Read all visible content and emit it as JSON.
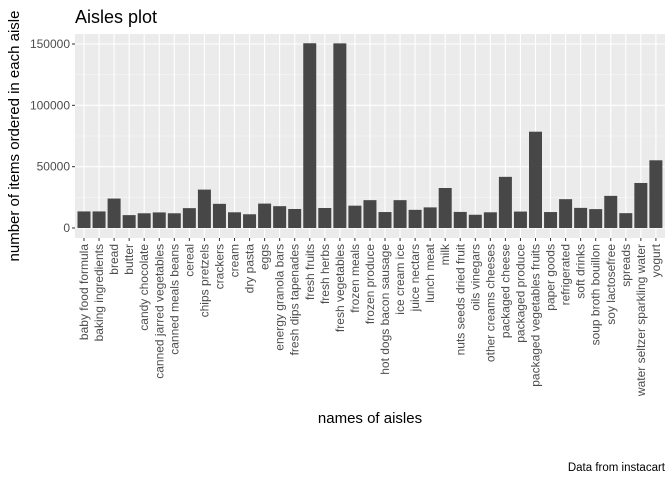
{
  "chart_data": {
    "type": "bar",
    "title": "Aisles plot",
    "xlabel": "names of aisles",
    "ylabel": "number of items ordered in each aisle",
    "caption": "Data from instacart",
    "ylim": [
      0,
      160000
    ],
    "yticks": [
      0,
      50000,
      100000,
      150000
    ],
    "ytick_labels": [
      "0",
      "50000",
      "100000",
      "150000"
    ],
    "grid": true,
    "bar_color": "#474747",
    "panel_color": "#ebebeb",
    "categories": [
      "baby food formula",
      "baking ingredients",
      "bread",
      "butter",
      "candy chocolate",
      "canned jarred vegetables",
      "canned meals beans",
      "cereal",
      "chips pretzels",
      "crackers",
      "cream",
      "dry pasta",
      "eggs",
      "energy granola bars",
      "fresh dips tapenades",
      "fresh fruits",
      "fresh herbs",
      "fresh vegetables",
      "frozen meals",
      "frozen produce",
      "hot dogs bacon sausage",
      "ice cream ice",
      "juice nectars",
      "lunch meat",
      "milk",
      "nuts seeds dried fruit",
      "oils vinegars",
      "other creams cheeses",
      "packaged cheese",
      "packaged produce",
      "packaged vegetables fruits",
      "paper goods",
      "refrigerated",
      "soft drinks",
      "soup broth bouillon",
      "soy lactosefree",
      "spreads",
      "water seltzer sparkling water",
      "yogurt"
    ],
    "values": [
      13500,
      13500,
      24000,
      10500,
      12000,
      12700,
      12000,
      16200,
      31300,
      19700,
      12800,
      11200,
      19900,
      17800,
      15500,
      150600,
      16300,
      150500,
      18200,
      22700,
      13000,
      22700,
      14800,
      16800,
      32600,
      13100,
      10800,
      12800,
      41700,
      13400,
      78500,
      13000,
      23500,
      16400,
      15400,
      26200,
      12100,
      36700,
      55200
    ]
  }
}
